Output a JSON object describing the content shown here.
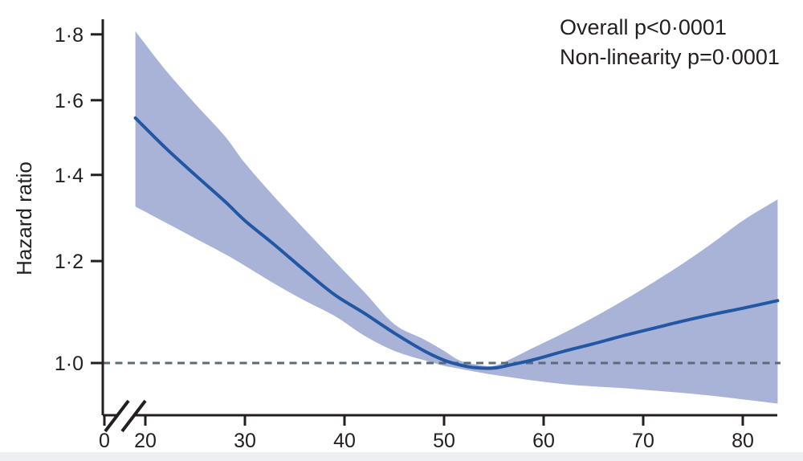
{
  "figure": {
    "annotation": {
      "line1": "Overall p<0·0001",
      "line2": "Non-linearity p=0·0001"
    },
    "y_axis": {
      "label": "Hazard ratio",
      "ticks": [
        {
          "value": 1.0,
          "label": "1·0"
        },
        {
          "value": 1.2,
          "label": "1·2"
        },
        {
          "value": 1.4,
          "label": "1·4"
        },
        {
          "value": 1.6,
          "label": "1·6"
        },
        {
          "value": 1.8,
          "label": "1·8"
        }
      ]
    },
    "x_axis": {
      "ticks": [
        {
          "value": 0,
          "label": "0"
        },
        {
          "value": 20,
          "label": "20"
        },
        {
          "value": 30,
          "label": "30"
        },
        {
          "value": 40,
          "label": "40"
        },
        {
          "value": 50,
          "label": "50"
        },
        {
          "value": 60,
          "label": "60"
        },
        {
          "value": 70,
          "label": "70"
        },
        {
          "value": 80,
          "label": "80"
        }
      ],
      "has_axis_break": true
    },
    "colors": {
      "band": "#a9b3d7",
      "line": "#2257a4",
      "reference_line": "#5d6b76",
      "axis": "#231f20",
      "footer_strip": "#edeff2"
    }
  },
  "chart_data": {
    "type": "line",
    "title": "",
    "xlabel": "",
    "ylabel": "Hazard ratio",
    "y_scale": "log",
    "ylim": [
      0.9,
      1.85
    ],
    "xlim": [
      0,
      84
    ],
    "x_ticks": [
      0,
      20,
      30,
      40,
      50,
      60,
      70,
      80
    ],
    "y_ticks": [
      1.0,
      1.2,
      1.4,
      1.6,
      1.8
    ],
    "x_axis_break": "between 0 and 20",
    "grid": false,
    "legend": "none",
    "reference_line": {
      "y": 1.0,
      "style": "dashed"
    },
    "annotations": [
      "Overall p<0·0001",
      "Non-linearity p=0·0001"
    ],
    "x": [
      19,
      22,
      25,
      28,
      30,
      33,
      36,
      39,
      42,
      45,
      48,
      50,
      51.5,
      53,
      55,
      57,
      59,
      62,
      65,
      68,
      71,
      74,
      77,
      80,
      83.5
    ],
    "series": [
      {
        "name": "Hazard ratio",
        "values": [
          1.55,
          1.47,
          1.4,
          1.335,
          1.29,
          1.235,
          1.18,
          1.13,
          1.093,
          1.055,
          1.022,
          1.005,
          0.997,
          0.992,
          0.991,
          0.998,
          1.006,
          1.021,
          1.035,
          1.05,
          1.064,
          1.078,
          1.091,
          1.103,
          1.118
        ]
      },
      {
        "name": "Upper 95% CI",
        "values": [
          1.81,
          1.69,
          1.59,
          1.5,
          1.43,
          1.345,
          1.27,
          1.2,
          1.135,
          1.072,
          1.043,
          1.022,
          1.005,
          0.998,
          0.995,
          1.01,
          1.028,
          1.055,
          1.085,
          1.118,
          1.155,
          1.195,
          1.24,
          1.29,
          1.34
        ]
      },
      {
        "name": "Lower 95% CI",
        "values": [
          1.323,
          1.286,
          1.25,
          1.215,
          1.19,
          1.152,
          1.118,
          1.088,
          1.05,
          1.022,
          1.005,
          0.995,
          0.99,
          0.985,
          0.979,
          0.974,
          0.969,
          0.963,
          0.959,
          0.956,
          0.952,
          0.948,
          0.943,
          0.937,
          0.93
        ]
      }
    ]
  }
}
